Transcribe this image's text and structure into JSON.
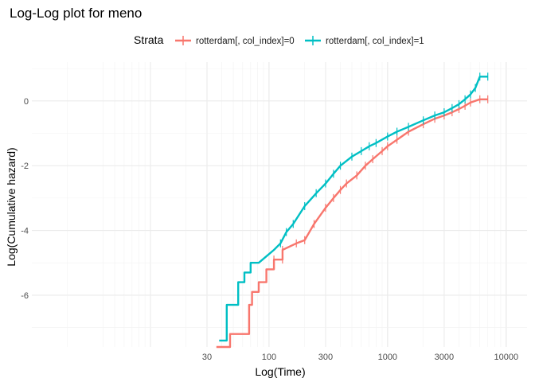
{
  "chart_data": {
    "type": "line",
    "title": "Log-Log plot for meno",
    "xlabel": "Log(Time)",
    "ylabel": "Log(Cumulative hazard)",
    "x_scale": "log10",
    "xlim": [
      1,
      15000
    ],
    "ylim": [
      -7.6,
      1.2
    ],
    "x_ticks": [
      30,
      100,
      300,
      1000,
      3000,
      10000
    ],
    "x_tick_labels": [
      "30",
      "100",
      "300",
      "1000",
      "3000",
      "10000"
    ],
    "y_ticks": [
      0,
      -2,
      -4,
      -6
    ],
    "y_tick_labels": [
      "0",
      "-2",
      "-4",
      "-6"
    ],
    "grid": true,
    "legend": {
      "title": "Strata",
      "position": "top"
    },
    "series": [
      {
        "name": "rotterdam[, col_index]=0",
        "color": "#F8766D",
        "points": [
          [
            36,
            -7.6
          ],
          [
            47,
            -7.6
          ],
          [
            47,
            -7.2
          ],
          [
            68,
            -7.2
          ],
          [
            68,
            -6.3
          ],
          [
            72,
            -6.3
          ],
          [
            72,
            -5.9
          ],
          [
            82,
            -5.9
          ],
          [
            82,
            -5.6
          ],
          [
            95,
            -5.6
          ],
          [
            95,
            -5.2
          ],
          [
            110,
            -5.2
          ],
          [
            110,
            -4.9
          ],
          [
            130,
            -4.9
          ],
          [
            130,
            -4.6
          ],
          [
            170,
            -4.4
          ],
          [
            200,
            -4.3
          ],
          [
            240,
            -3.8
          ],
          [
            300,
            -3.3
          ],
          [
            350,
            -3.0
          ],
          [
            400,
            -2.75
          ],
          [
            450,
            -2.55
          ],
          [
            550,
            -2.3
          ],
          [
            650,
            -2.0
          ],
          [
            750,
            -1.8
          ],
          [
            900,
            -1.55
          ],
          [
            1000,
            -1.4
          ],
          [
            1200,
            -1.2
          ],
          [
            1500,
            -0.95
          ],
          [
            2000,
            -0.72
          ],
          [
            2500,
            -0.55
          ],
          [
            3000,
            -0.45
          ],
          [
            3500,
            -0.35
          ],
          [
            4000,
            -0.25
          ],
          [
            4500,
            -0.15
          ],
          [
            5000,
            -0.05
          ],
          [
            6000,
            0.05
          ],
          [
            7000,
            0.05
          ]
        ]
      },
      {
        "name": "rotterdam[, col_index]=1",
        "color": "#00BFC4",
        "points": [
          [
            38,
            -7.4
          ],
          [
            44,
            -7.4
          ],
          [
            44,
            -6.3
          ],
          [
            55,
            -6.3
          ],
          [
            55,
            -5.6
          ],
          [
            62,
            -5.6
          ],
          [
            62,
            -5.3
          ],
          [
            70,
            -5.3
          ],
          [
            70,
            -5.0
          ],
          [
            82,
            -5.0
          ],
          [
            95,
            -4.8
          ],
          [
            110,
            -4.6
          ],
          [
            125,
            -4.4
          ],
          [
            140,
            -4.05
          ],
          [
            160,
            -3.8
          ],
          [
            200,
            -3.25
          ],
          [
            250,
            -2.85
          ],
          [
            300,
            -2.55
          ],
          [
            350,
            -2.25
          ],
          [
            400,
            -2.0
          ],
          [
            500,
            -1.72
          ],
          [
            600,
            -1.55
          ],
          [
            700,
            -1.4
          ],
          [
            800,
            -1.3
          ],
          [
            1000,
            -1.1
          ],
          [
            1200,
            -0.95
          ],
          [
            1500,
            -0.8
          ],
          [
            2000,
            -0.6
          ],
          [
            2500,
            -0.45
          ],
          [
            3000,
            -0.35
          ],
          [
            3500,
            -0.22
          ],
          [
            4000,
            -0.1
          ],
          [
            4500,
            0.05
          ],
          [
            5000,
            0.2
          ],
          [
            5500,
            0.4
          ],
          [
            6000,
            0.75
          ],
          [
            7000,
            0.75
          ]
        ]
      }
    ]
  }
}
